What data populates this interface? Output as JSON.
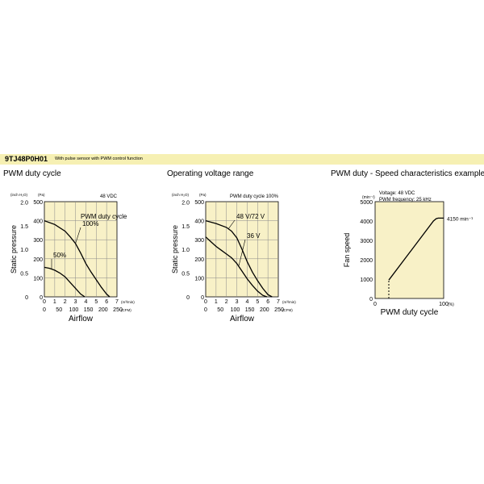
{
  "header": {
    "model": "9TJ48P0H01",
    "description": "With pulse sensor with PWM control function"
  },
  "colors": {
    "banner": "#f6f0b3",
    "plot_bg": "#f8f1c7",
    "grid": "#888888",
    "curve": "#000000"
  },
  "chart_data": [
    {
      "type": "line",
      "title": "PWM duty cycle",
      "note": "48 VDC",
      "xlabel": "Airflow",
      "ylabel": "Static pressure",
      "x_unit_top": "(m³/min)",
      "x_unit_bottom": "(CFM)",
      "y_unit_left": "(inch H₂O)",
      "y_unit_right": "(Pa)",
      "xlim": [
        0,
        7
      ],
      "ylim": [
        0,
        500
      ],
      "x_ticks": [
        0,
        1,
        2,
        3,
        4,
        5,
        6,
        7
      ],
      "x_ticks_cfm": [
        0,
        50,
        100,
        150,
        200,
        250
      ],
      "y_ticks": [
        0,
        100,
        200,
        300,
        400,
        500
      ],
      "y_ticks_inch": [
        0,
        0.5,
        1.0,
        1.5,
        2.0
      ],
      "legend_title": "PWM duty cycle",
      "series": [
        {
          "name": "100%",
          "x": [
            0,
            1,
            2,
            2.5,
            3,
            3.5,
            4,
            4.5,
            5,
            5.5,
            6,
            6.3
          ],
          "y": [
            400,
            380,
            345,
            315,
            280,
            230,
            175,
            130,
            90,
            50,
            15,
            0
          ]
        },
        {
          "name": "50%",
          "x": [
            0,
            0.5,
            1,
            1.5,
            2,
            2.5,
            3,
            3.5,
            3.9
          ],
          "y": [
            155,
            150,
            140,
            125,
            105,
            75,
            45,
            15,
            0
          ]
        }
      ]
    },
    {
      "type": "line",
      "title": "Operating voltage range",
      "note": "PWM duty cycle 100%",
      "xlabel": "Airflow",
      "ylabel": "Static pressure",
      "x_unit_top": "(m³/min)",
      "x_unit_bottom": "(CFM)",
      "y_unit_left": "(inch H₂O)",
      "y_unit_right": "(Pa)",
      "xlim": [
        0,
        7
      ],
      "ylim": [
        0,
        500
      ],
      "x_ticks": [
        0,
        1,
        2,
        3,
        4,
        5,
        6,
        7
      ],
      "x_ticks_cfm": [
        0,
        50,
        100,
        150,
        200,
        250
      ],
      "y_ticks": [
        0,
        100,
        200,
        300,
        400,
        500
      ],
      "y_ticks_inch": [
        0,
        0.5,
        1.0,
        1.5,
        2.0
      ],
      "series": [
        {
          "name": "48 V/72 V",
          "x": [
            0,
            1,
            2,
            2.5,
            3,
            3.5,
            4,
            4.5,
            5,
            5.5,
            6,
            6.4
          ],
          "y": [
            400,
            385,
            365,
            345,
            310,
            250,
            185,
            130,
            85,
            45,
            12,
            0
          ]
        },
        {
          "name": "36 V",
          "x": [
            0,
            0.5,
            1,
            1.5,
            2,
            2.5,
            3,
            3.5,
            4,
            4.5,
            5,
            5.5,
            5.9
          ],
          "y": [
            315,
            290,
            265,
            245,
            225,
            205,
            175,
            135,
            95,
            60,
            30,
            8,
            0
          ]
        }
      ]
    },
    {
      "type": "line",
      "title": "PWM duty - Speed characteristics example",
      "note_lines": [
        "Voltage: 48 VDC",
        "PWM frequency: 25 kHz"
      ],
      "xlabel": "PWM duty cycle",
      "ylabel": "Fan speed",
      "x_unit": "(%)",
      "y_unit": "(min⁻¹)",
      "xlim": [
        0,
        100
      ],
      "ylim": [
        0,
        5000
      ],
      "x_ticks": [
        0,
        100
      ],
      "y_ticks": [
        0,
        1000,
        2000,
        3000,
        4000,
        5000
      ],
      "annotation": "4150 min⁻¹",
      "series": [
        {
          "name": "speed",
          "x": [
            20,
            85,
            89,
            92,
            100
          ],
          "y": [
            950,
            4000,
            4120,
            4150,
            4150
          ]
        }
      ],
      "dashed_segment": {
        "x": [
          20,
          20
        ],
        "y": [
          0,
          950
        ]
      }
    }
  ]
}
